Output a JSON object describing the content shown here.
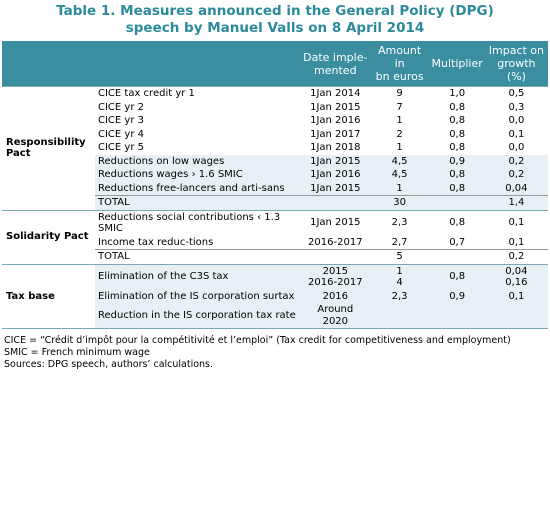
{
  "header": {
    "title": "Table 1. Measures announced in the General Policy (DPG) speech by Manuel Valls on 8 April 2014"
  },
  "table": {
    "columns": [
      "Date imple-\nmented",
      "Amount in\nbn euros",
      "Multiplier",
      "Impact on\ngrowth (%)"
    ],
    "groups": [
      {
        "label": "Responsibility Pact",
        "rows": [
          {
            "measure": "CICE tax credit yr 1",
            "date": "1Jan 2014",
            "amount": "9",
            "multiplier": "1,0",
            "impact": "0,5"
          },
          {
            "measure": "CICE yr 2",
            "date": "1Jan 2015",
            "amount": "7",
            "multiplier": "0,8",
            "impact": "0,3"
          },
          {
            "measure": "CICE yr 3",
            "date": "1Jan 2016",
            "amount": "1",
            "multiplier": "0,8",
            "impact": "0,0"
          },
          {
            "measure": "CICE yr 4",
            "date": "1Jan 2017",
            "amount": "2",
            "multiplier": "0,8",
            "impact": "0,1"
          },
          {
            "measure": "CICE yr 5",
            "date": "1Jan 2018",
            "amount": "1",
            "multiplier": "0,8",
            "impact": "0,0"
          },
          {
            "measure": "Reductions on low wages",
            "date": "1Jan 2015",
            "amount": "4,5",
            "multiplier": "0,9",
            "impact": "0,2"
          },
          {
            "measure": "Reductions wages › 1.6 SMIC",
            "date": "1Jan 2016",
            "amount": "4,5",
            "multiplier": "0,8",
            "impact": "0,2"
          },
          {
            "measure": "Reductions free-lancers and arti-sans",
            "date": "1Jan 2015",
            "amount": "1",
            "multiplier": "0,8",
            "impact": "0,04"
          },
          {
            "measure": "TOTAL",
            "amount": "30",
            "impact": "1,4"
          }
        ]
      },
      {
        "label": "Solidarity Pact",
        "rows": [
          {
            "measure": "Reductions social contributions ‹ 1.3 SMIC",
            "date": "1Jan 2015",
            "amount": "2,3",
            "multiplier": "0,8",
            "impact": "0,1"
          },
          {
            "measure": "Income tax reduc-tions",
            "date": "2016-2017",
            "amount": "2,7",
            "multiplier": "0,7",
            "impact": "0,1"
          },
          {
            "measure": "TOTAL",
            "amount": "5",
            "impact": "0,2"
          }
        ]
      },
      {
        "label": "Tax base",
        "rows": [
          {
            "measure": "Elimination of the C3S tax",
            "date": [
              "2015",
              "2016-2017"
            ],
            "amount": [
              "1",
              "4"
            ],
            "multiplier": "0,8",
            "impact": [
              "0,04",
              "0,16"
            ]
          },
          {
            "measure": "Elimination of the IS corporation surtax",
            "date": "2016",
            "amount": "2,3",
            "multiplier": "0,9",
            "impact": "0,1"
          },
          {
            "measure": "Reduction in the IS corporation tax rate",
            "date": "Around 2020"
          }
        ]
      }
    ]
  },
  "notes": [
    "CICE = “Crédit d’impôt pour la compétitivité et l’emploi” (Tax credit for competitiveness and employment)",
    "SMIC = French minimum wage",
    "Sources: DPG speech, authors’ calculations."
  ]
}
